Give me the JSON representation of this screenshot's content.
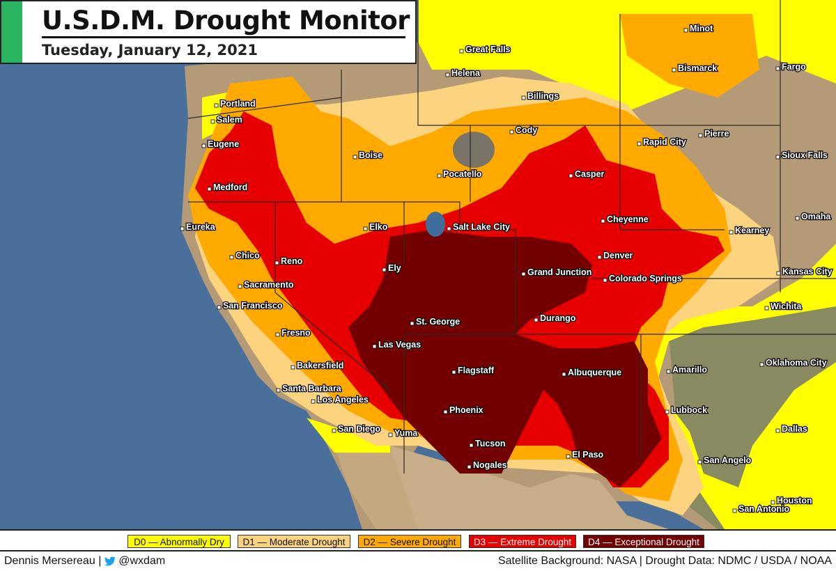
{
  "title": "U.S.D.M. Drought Monitor",
  "date": "Tuesday, January 12, 2021",
  "legend": [
    {
      "label": "D0 — Abnormally Dry",
      "color": "#ffff00",
      "text_color": "#111"
    },
    {
      "label": "D1 — Moderate Drought",
      "color": "#fcd37f",
      "text_color": "#111"
    },
    {
      "label": "D2 — Severe Drought",
      "color": "#ffaa00",
      "text_color": "#111"
    },
    {
      "label": "D3 — Extreme Drought",
      "color": "#e60000",
      "text_color": "#fff"
    },
    {
      "label": "D4 — Exceptional Drought",
      "color": "#730000",
      "text_color": "#fff"
    }
  ],
  "footer": {
    "author": "Dennis Mersereau",
    "separator": "|",
    "handle": "@wxdam",
    "credits": "Satellite Background: NASA | Drought Data: NDMC / USDA / NOAA"
  },
  "cities": [
    {
      "name": "Great Falls"
    },
    {
      "name": "Minot"
    },
    {
      "name": "Helena"
    },
    {
      "name": "Bismarck"
    },
    {
      "name": "Fargo"
    },
    {
      "name": "Billings"
    },
    {
      "name": "Portland"
    },
    {
      "name": "Salem"
    },
    {
      "name": "Cody"
    },
    {
      "name": "Pierre"
    },
    {
      "name": "Eugene"
    },
    {
      "name": "Rapid City"
    },
    {
      "name": "Boise"
    },
    {
      "name": "Sioux Falls"
    },
    {
      "name": "Pocatello"
    },
    {
      "name": "Casper"
    },
    {
      "name": "Medford"
    },
    {
      "name": "Cheyenne"
    },
    {
      "name": "Omaha"
    },
    {
      "name": "Eureka"
    },
    {
      "name": "Elko"
    },
    {
      "name": "Salt Lake City"
    },
    {
      "name": "Kearney"
    },
    {
      "name": "Chico"
    },
    {
      "name": "Reno"
    },
    {
      "name": "Ely"
    },
    {
      "name": "Denver"
    },
    {
      "name": "Grand Junction"
    },
    {
      "name": "Kansas City"
    },
    {
      "name": "Sacramento"
    },
    {
      "name": "Colorado Springs"
    },
    {
      "name": "San Francisco"
    },
    {
      "name": "Wichita"
    },
    {
      "name": "St. George"
    },
    {
      "name": "Durango"
    },
    {
      "name": "Fresno"
    },
    {
      "name": "Las Vegas"
    },
    {
      "name": "Bakersfield"
    },
    {
      "name": "Flagstaff"
    },
    {
      "name": "Amarillo"
    },
    {
      "name": "Oklahoma City"
    },
    {
      "name": "Albuquerque"
    },
    {
      "name": "Santa Barbara"
    },
    {
      "name": "Los Angeles"
    },
    {
      "name": "Phoenix"
    },
    {
      "name": "Lubbock"
    },
    {
      "name": "Dallas"
    },
    {
      "name": "San Diego"
    },
    {
      "name": "Yuma"
    },
    {
      "name": "Tucson"
    },
    {
      "name": "El Paso"
    },
    {
      "name": "San Angelo"
    },
    {
      "name": "Nogales"
    },
    {
      "name": "Houston"
    },
    {
      "name": "San Antonio"
    }
  ]
}
